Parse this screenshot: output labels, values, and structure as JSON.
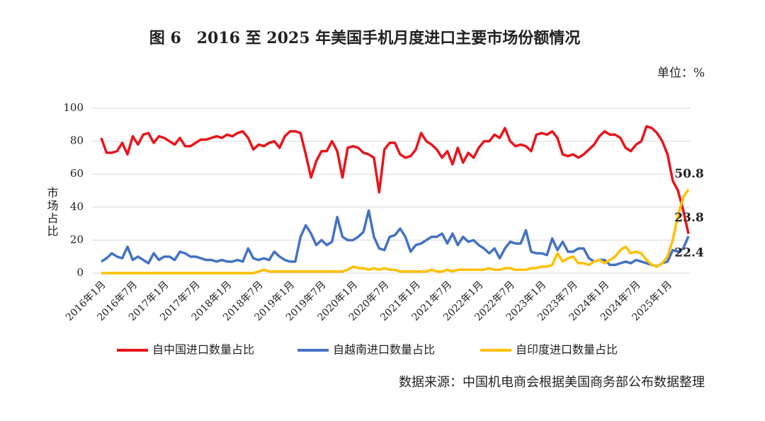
{
  "chart_data": {
    "type": "line",
    "title": "图 6　2016 至 2025 年美国手机月度进口主要市场份额情况",
    "unit": "单位：%",
    "y_label": "市场占比",
    "source": "数据来源：中国机电商会根据美国商务部公布数据整理",
    "categories": [
      "2016年1月",
      null,
      null,
      null,
      null,
      null,
      "2016年7月",
      null,
      null,
      null,
      null,
      null,
      "2017年1月",
      null,
      null,
      null,
      null,
      null,
      "2017年7月",
      null,
      null,
      null,
      null,
      null,
      "2018年1月",
      null,
      null,
      null,
      null,
      null,
      "2018年7月",
      null,
      null,
      null,
      null,
      null,
      "2019年1月",
      null,
      null,
      null,
      null,
      null,
      "2019年7月",
      null,
      null,
      null,
      null,
      null,
      "2020年1月",
      null,
      null,
      null,
      null,
      null,
      "2020年7月",
      null,
      null,
      null,
      null,
      null,
      "2021年1月",
      null,
      null,
      null,
      null,
      null,
      "2021年7月",
      null,
      null,
      null,
      null,
      null,
      "2022年1月",
      null,
      null,
      null,
      null,
      null,
      "2022年7月",
      null,
      null,
      null,
      null,
      null,
      "2023年1月",
      null,
      null,
      null,
      null,
      null,
      "2023年7月",
      null,
      null,
      null,
      null,
      null,
      "2024年1月",
      null,
      null,
      null,
      null,
      null,
      "2024年7月",
      null,
      null,
      null,
      null,
      null,
      "2025年1月",
      null,
      null,
      null,
      null
    ],
    "series": [
      {
        "name": "自中国进口数量占比",
        "color": "#e8141b",
        "values": [
          82,
          73,
          73,
          74,
          79,
          72,
          83,
          78,
          84,
          85,
          79,
          83,
          82,
          80,
          78,
          82,
          77,
          77,
          79,
          81,
          81,
          82,
          83,
          82,
          84,
          83,
          85,
          86,
          82,
          75,
          78,
          77,
          79,
          80,
          76,
          83,
          86,
          86,
          85,
          72,
          58,
          68,
          74,
          74,
          80,
          74,
          58,
          76,
          77,
          76,
          73,
          72,
          70,
          49,
          75,
          79,
          79,
          72,
          70,
          71,
          75,
          85,
          80,
          78,
          75,
          70,
          74,
          66,
          76,
          67,
          73,
          70,
          76,
          80,
          80,
          84,
          82,
          88,
          80,
          77,
          78,
          77,
          74,
          84,
          85,
          84,
          86,
          82,
          72,
          71,
          72,
          70,
          72,
          75,
          78,
          83,
          86,
          84,
          84,
          82,
          76,
          74,
          78,
          80,
          89,
          88,
          85,
          80,
          72,
          56,
          50,
          38,
          23.8
        ]
      },
      {
        "name": "自越南进口数量占比",
        "color": "#4472c4",
        "values": [
          7,
          9,
          12,
          10,
          9,
          16,
          8,
          10,
          8,
          6,
          12,
          8,
          10,
          10,
          8,
          13,
          12,
          10,
          10,
          9,
          8,
          8,
          7,
          8,
          7,
          7,
          8,
          7,
          15,
          9,
          8,
          9,
          8,
          13,
          10,
          8,
          7,
          7,
          22,
          29,
          24,
          17,
          20,
          17,
          19,
          34,
          22,
          20,
          20,
          22,
          25,
          38,
          22,
          15,
          14,
          22,
          23,
          27,
          22,
          13,
          17,
          18,
          20,
          22,
          22,
          24,
          18,
          24,
          17,
          22,
          19,
          20,
          17,
          15,
          12,
          15,
          9,
          15,
          19,
          18,
          18,
          26,
          13,
          12,
          12,
          11,
          21,
          14,
          19,
          13,
          13,
          15,
          15,
          9,
          7,
          8,
          8,
          5,
          5,
          6,
          7,
          6,
          8,
          7,
          6,
          5,
          4,
          6,
          7,
          14,
          13,
          15,
          22.4
        ]
      },
      {
        "name": "自印度进口数量占比",
        "color": "#ffc000",
        "values": [
          0,
          0,
          0,
          0,
          0,
          0,
          0,
          0,
          0,
          0,
          0,
          0,
          0,
          0,
          0,
          0,
          0,
          0,
          0,
          0,
          0,
          0,
          0,
          0,
          0,
          0,
          0,
          0,
          0,
          0,
          1,
          2,
          1,
          1,
          1,
          1,
          1,
          1,
          1,
          1,
          1,
          1,
          1,
          1,
          1,
          1,
          1,
          2,
          4,
          3,
          3,
          2,
          3,
          2,
          3,
          2,
          2,
          1,
          1,
          1,
          1,
          1,
          1,
          2,
          1,
          1,
          2,
          1,
          2,
          2,
          2,
          2,
          2,
          2,
          3,
          2,
          2,
          3,
          3,
          2,
          2,
          2,
          3,
          3,
          4,
          4,
          5,
          12,
          7,
          9,
          10,
          6,
          6,
          5,
          7,
          8,
          6,
          8,
          10,
          14,
          16,
          12,
          13,
          12,
          8,
          5,
          4,
          6,
          10,
          20,
          35,
          46,
          50.8
        ]
      }
    ],
    "ylim": [
      0,
      100
    ],
    "yticks": [
      0,
      20,
      40,
      60,
      80,
      100
    ],
    "grid": true,
    "legend": "bottom"
  }
}
